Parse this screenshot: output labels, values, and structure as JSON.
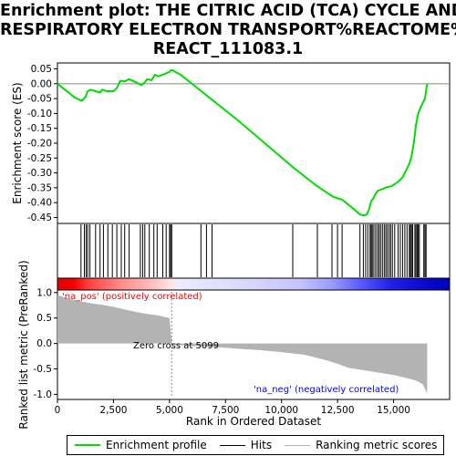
{
  "title_lines": [
    "Enrichment plot: THE CITRIC ACID (TCA) CYCLE AND",
    "RESPIRATORY ELECTRON TRANSPORT%REACTOME%",
    "REACT_111083.1"
  ],
  "legend": {
    "enrichment": "Enrichment profile",
    "hits": "Hits",
    "ranking": "Ranking metric scores"
  },
  "colors": {
    "profile": "#00dd00",
    "hits": "#000000",
    "metric_fill": "#b3b3b3",
    "pos_text": "#ff0000",
    "neg_text": "#0000ff",
    "zero_line": "#888888"
  },
  "chart_data": [
    {
      "type": "line",
      "name": "enrichment-profile",
      "ylabel": "Enrichment score (ES)",
      "xlim": [
        0,
        17500
      ],
      "ylim": [
        -0.47,
        0.07
      ],
      "yticks": [
        0.05,
        0.0,
        -0.05,
        -0.1,
        -0.15,
        -0.2,
        -0.25,
        -0.3,
        -0.35,
        -0.4,
        -0.45
      ],
      "ytick_labels": [
        "0.05",
        "0.00",
        "-0.05",
        "-0.10",
        "-0.15",
        "-0.20",
        "-0.25",
        "-0.30",
        "-0.35",
        "-0.40",
        "-0.45"
      ],
      "x": [
        0,
        250,
        500,
        750,
        1000,
        1100,
        1250,
        1350,
        1500,
        1700,
        1900,
        2000,
        2200,
        2500,
        2650,
        2800,
        3000,
        3200,
        3500,
        3750,
        3900,
        4000,
        4200,
        4350,
        4500,
        4700,
        4850,
        5000,
        5050,
        5150,
        5300,
        5500,
        8000,
        10500,
        11500,
        12300,
        12700,
        13200,
        13500,
        13700,
        13800,
        13900,
        14000,
        14100,
        14200,
        14300,
        14500,
        14700,
        14900,
        15000,
        15200,
        15400,
        15500,
        15700,
        15800,
        15900,
        16000,
        16100,
        16200,
        16400,
        16500
      ],
      "y": [
        0.0,
        -0.015,
        -0.03,
        -0.045,
        -0.055,
        -0.057,
        -0.045,
        -0.025,
        -0.02,
        -0.025,
        -0.03,
        -0.02,
        -0.025,
        -0.025,
        -0.015,
        0.01,
        0.008,
        0.015,
        0.005,
        -0.005,
        0.005,
        0.015,
        0.012,
        0.03,
        0.025,
        0.03,
        0.035,
        0.04,
        0.045,
        0.045,
        0.038,
        0.03,
        -0.12,
        -0.28,
        -0.34,
        -0.38,
        -0.39,
        -0.42,
        -0.44,
        -0.443,
        -0.44,
        -0.425,
        -0.395,
        -0.385,
        -0.37,
        -0.36,
        -0.355,
        -0.348,
        -0.345,
        -0.34,
        -0.33,
        -0.315,
        -0.3,
        -0.27,
        -0.245,
        -0.2,
        -0.14,
        -0.1,
        -0.08,
        -0.05,
        0.0
      ]
    },
    {
      "type": "scatter",
      "name": "hits",
      "xlim": [
        0,
        17500
      ],
      "x": [
        1050,
        1200,
        1280,
        1350,
        1450,
        1700,
        1900,
        2050,
        2250,
        2450,
        2650,
        2850,
        3000,
        3200,
        3700,
        3800,
        3900,
        4100,
        4300,
        4450,
        4700,
        4850,
        5000,
        5050,
        5100,
        6400,
        6650,
        6900,
        10500,
        11600,
        12250,
        12500,
        12700,
        13500,
        13650,
        13750,
        13850,
        13950,
        14000,
        14050,
        14120,
        14200,
        14280,
        14350,
        14420,
        14500,
        14580,
        14650,
        14720,
        14800,
        14870,
        14950,
        15050,
        15200,
        15300,
        15400,
        15500,
        15600,
        15700,
        15750,
        15800,
        15850,
        15950,
        16000,
        16050,
        16100,
        16150,
        16350,
        16400,
        16450
      ]
    },
    {
      "type": "area",
      "name": "ranking-metric",
      "ylabel": "Ranked list metric (PreRanked)",
      "xlabel": "Rank in Ordered Dataset",
      "xlim": [
        0,
        17500
      ],
      "ylim": [
        -1.1,
        1.05
      ],
      "xticks": [
        0,
        2500,
        5000,
        7500,
        10000,
        12500,
        15000
      ],
      "xtick_labels": [
        "0",
        "2,500",
        "5,000",
        "7,500",
        "10,000",
        "12,500",
        "15,000"
      ],
      "yticks": [
        1.0,
        0.5,
        0.0,
        -0.5,
        -1.0
      ],
      "ytick_labels": [
        "1.0",
        "0.5",
        "0.0",
        "-0.5",
        "-1.0"
      ],
      "x": [
        0,
        500,
        1000,
        1500,
        2000,
        2500,
        3000,
        3500,
        4000,
        4500,
        5000,
        5099,
        5100,
        6000,
        7000,
        8000,
        9000,
        10000,
        11000,
        12000,
        12500,
        13000,
        14000,
        15000,
        15500,
        16000,
        16300,
        16500
      ],
      "y": [
        0.95,
        0.88,
        0.83,
        0.79,
        0.76,
        0.72,
        0.67,
        0.62,
        0.58,
        0.55,
        0.5,
        0.0,
        -0.02,
        -0.05,
        -0.07,
        -0.1,
        -0.13,
        -0.17,
        -0.22,
        -0.33,
        -0.4,
        -0.48,
        -0.55,
        -0.62,
        -0.67,
        -0.73,
        -0.8,
        -0.98
      ],
      "annotations": {
        "pos": "'na_pos' (positively correlated)",
        "zero_cross": "Zero cross at 5099",
        "neg": "'na_neg' (negatively correlated)"
      },
      "zero_cross": 5099
    }
  ]
}
